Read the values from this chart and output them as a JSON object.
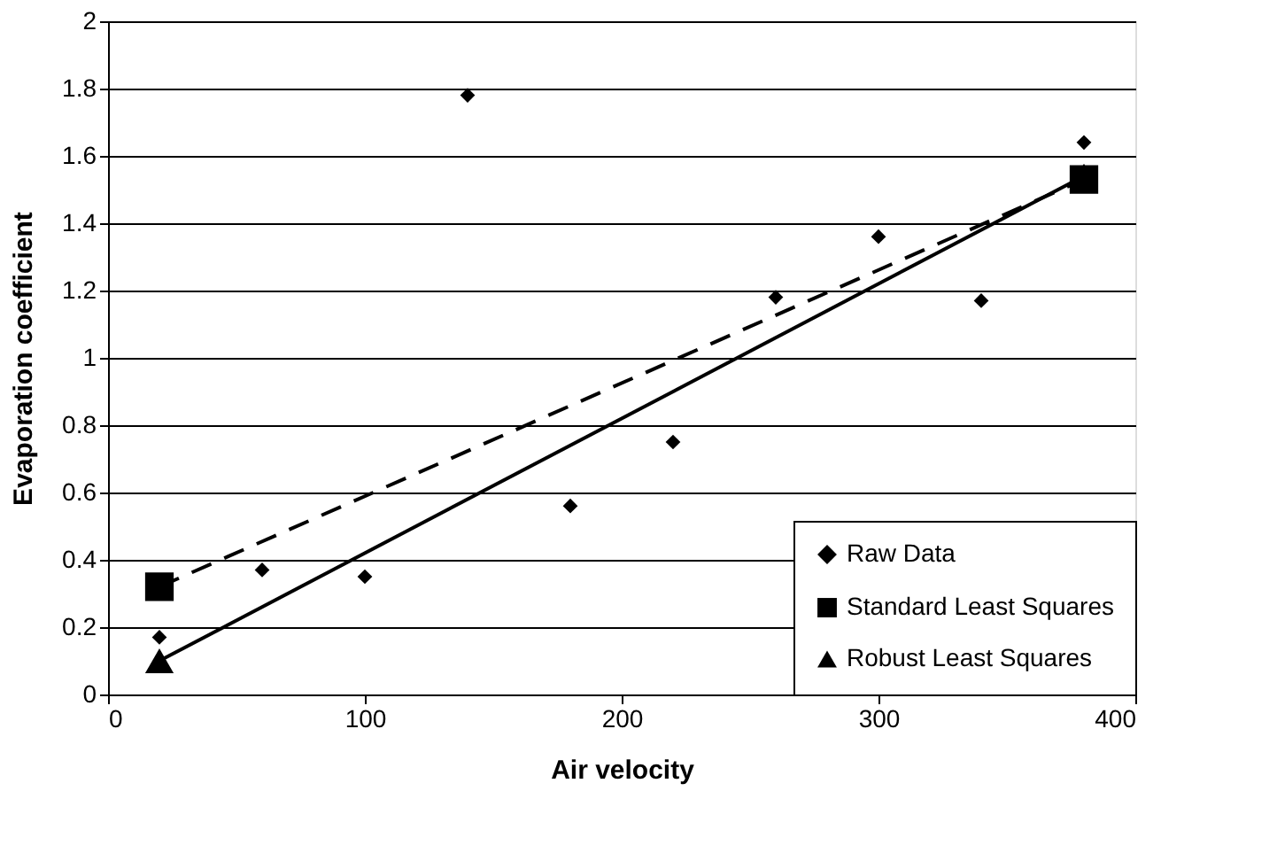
{
  "chart_data": {
    "type": "scatter",
    "xlabel": "Air velocity",
    "ylabel": "Evaporation coefficient",
    "xlim": [
      0,
      400
    ],
    "xticks": [
      0,
      100,
      200,
      300,
      400
    ],
    "ylim": [
      0,
      2
    ],
    "yticks": [
      0,
      {
        "value": 0.2,
        "label": "0.2"
      },
      {
        "value": 0.4,
        "label": "0.4"
      },
      {
        "value": 0.6,
        "label": "0.6"
      },
      {
        "value": 0.8,
        "label": "0.8"
      },
      1,
      {
        "value": 1.2,
        "label": "1.2"
      },
      {
        "value": 1.4,
        "label": "1.4"
      },
      {
        "value": 1.6,
        "label": "1.6"
      },
      {
        "value": 1.8,
        "label": "1.8"
      },
      2
    ],
    "grid": "y",
    "legend": "bottom right",
    "series": [
      {
        "name": "Raw  Data",
        "type": "scatter",
        "color": "#000000",
        "marker": "diamond",
        "x": [
          20,
          60,
          100,
          140,
          180,
          220,
          260,
          300,
          340,
          380
        ],
        "values": [
          0.17,
          0.37,
          0.35,
          1.78,
          0.56,
          0.75,
          1.18,
          1.36,
          1.17,
          1.64
        ]
      },
      {
        "name": "Standard Least Squares",
        "type": "line",
        "color": "#000000",
        "marker": "square",
        "line_style": "dashed",
        "x": [
          20,
          380
        ],
        "values": [
          0.32,
          1.53
        ]
      },
      {
        "name": "Robust Least Squares",
        "type": "line",
        "color": "#000000",
        "marker": "triangle",
        "line_style": "solid",
        "x": [
          20,
          380
        ],
        "values": [
          0.1,
          1.54
        ]
      }
    ]
  }
}
